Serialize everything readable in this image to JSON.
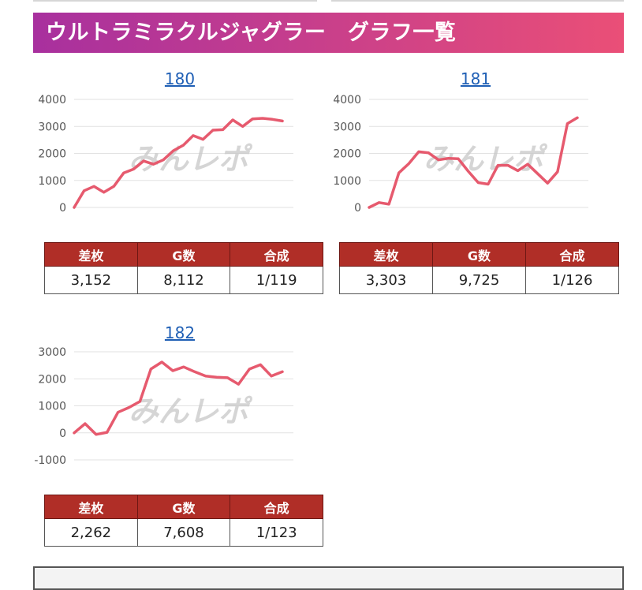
{
  "title": "ウルトラミラクルジャグラー　グラフ一覧",
  "colors": {
    "title_gradient_start": "#a8309e",
    "title_gradient_end": "#ea4f77",
    "table_header": "#b02e27",
    "line": "#e65a6e",
    "watermark": "#c8c8c8",
    "watermark_accent": "#f2b6b6"
  },
  "watermark_text": "みんレポ",
  "table_headers": [
    "差枚",
    "G数",
    "合成"
  ],
  "machines": [
    {
      "number": "180",
      "stats": {
        "difference": "3,152",
        "games": "8,112",
        "combined": "1/119"
      },
      "chart_data": {
        "type": "line",
        "y_ticks": [
          "4000",
          "3000",
          "2000",
          "1000",
          "0"
        ],
        "ylim": [
          0,
          4000
        ],
        "grid": true,
        "y": [
          0,
          620,
          780,
          560,
          780,
          1280,
          1420,
          1720,
          1600,
          1760,
          2100,
          2300,
          2660,
          2520,
          2860,
          2880,
          3240,
          3000,
          3280,
          3300,
          3260,
          3200
        ]
      }
    },
    {
      "number": "181",
      "stats": {
        "difference": "3,303",
        "games": "9,725",
        "combined": "1/126"
      },
      "chart_data": {
        "type": "line",
        "y_ticks": [
          "4000",
          "3000",
          "2000",
          "1000",
          "0"
        ],
        "ylim": [
          0,
          4000
        ],
        "grid": true,
        "y": [
          0,
          180,
          120,
          1280,
          1620,
          2060,
          2020,
          1760,
          1820,
          1800,
          1340,
          920,
          860,
          1560,
          1560,
          1360,
          1600,
          1250,
          900,
          1320,
          3100,
          3320
        ]
      }
    },
    {
      "number": "182",
      "stats": {
        "difference": "2,262",
        "games": "7,608",
        "combined": "1/123"
      },
      "chart_data": {
        "type": "line",
        "y_ticks": [
          "3000",
          "2000",
          "1000",
          "0",
          "-1000"
        ],
        "ylim": [
          -1000,
          3000
        ],
        "grid": true,
        "y": [
          0,
          340,
          -60,
          20,
          760,
          940,
          1160,
          2360,
          2620,
          2300,
          2440,
          2260,
          2100,
          2060,
          2040,
          1800,
          2360,
          2520,
          2100,
          2260
        ]
      }
    }
  ]
}
